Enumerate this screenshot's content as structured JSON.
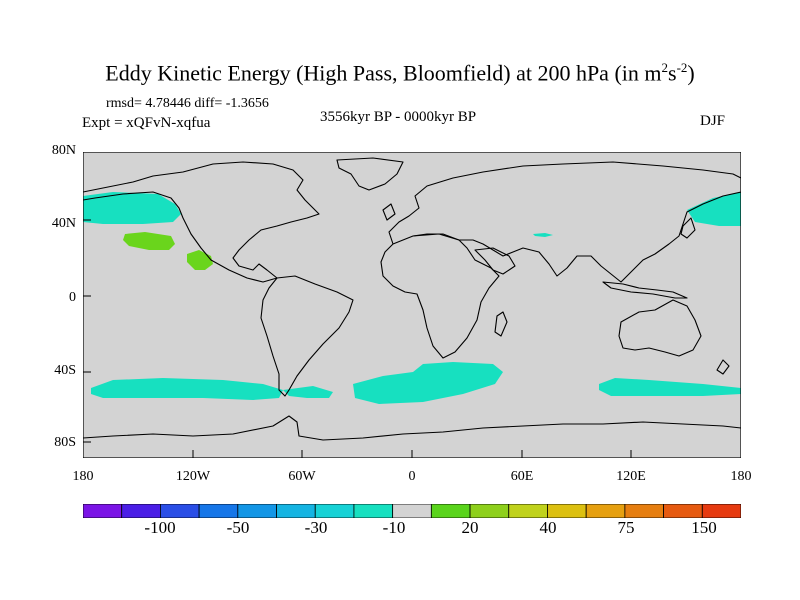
{
  "title": {
    "main": "Eddy Kinetic Energy (High Pass, Bloomfield) at 200 hPa (in m",
    "sup1": "2",
    "mid": "s",
    "sup2": "-2",
    "end": ")"
  },
  "stats": "rmsd= 4.78446 diff= -1.3656",
  "experiment": "Expt = xQFvN-xqfua",
  "period": "3556kyr BP - 0000kyr BP",
  "season": "DJF",
  "map": {
    "latitude_labels": [
      "80N",
      "40N",
      "0",
      "40S",
      "80S"
    ],
    "longitude_labels": [
      "180",
      "120W",
      "60W",
      "0",
      "60E",
      "120E",
      "180"
    ],
    "colors": {
      "land_ocean": "#d3d3d3",
      "cyan": "#17e0c0",
      "green": "#6ad51c",
      "coast": "#000000"
    }
  },
  "colorbar": {
    "colors": [
      "#7b14e6",
      "#4a1ee6",
      "#2a4ee6",
      "#1676e8",
      "#1396e6",
      "#15b4e2",
      "#17d2d6",
      "#17e0c0",
      "#d3d3d3",
      "#5ad41c",
      "#8ed01c",
      "#c0d21c",
      "#dcc010",
      "#e6a010",
      "#e67e10",
      "#e65a10",
      "#e63a10"
    ],
    "labels": [
      "-100",
      "-50",
      "-30",
      "-10",
      "20",
      "40",
      "75",
      "150"
    ]
  }
}
